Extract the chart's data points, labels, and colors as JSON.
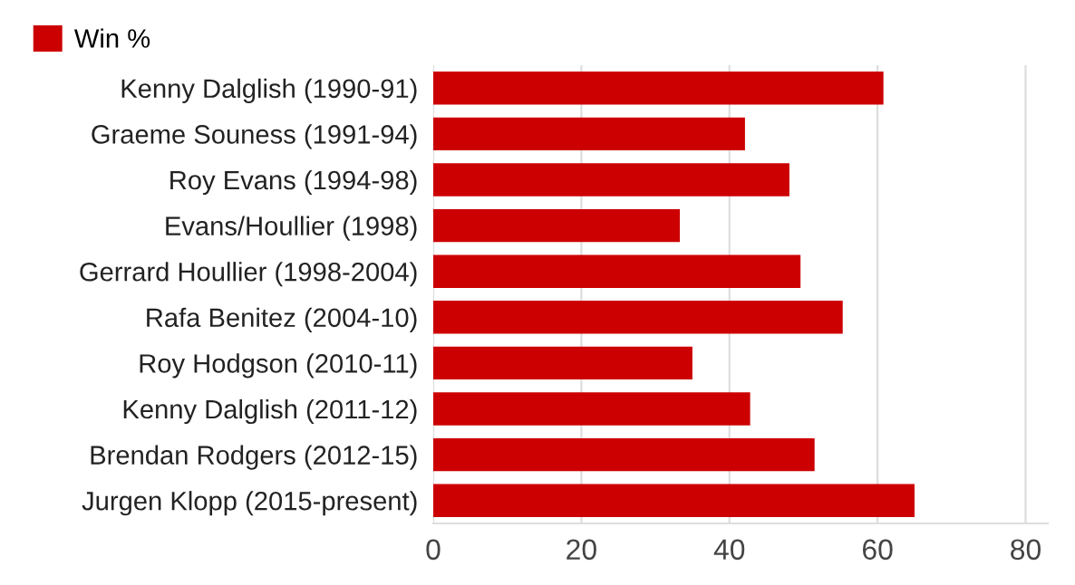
{
  "chart_data": {
    "type": "bar",
    "orientation": "horizontal",
    "categories": [
      "Kenny Dalglish (1990-91)",
      "Graeme Souness (1991-94)",
      "Roy Evans (1994-98)",
      "Evans/Houllier (1998)",
      "Gerrard Houllier (1998-2004)",
      "Rafa Benitez (2004-10)",
      "Roy Hodgson (2010-11)",
      "Kenny Dalglish (2011-12)",
      "Brendan Rodgers (2012-15)",
      "Jurgen Klopp (2015-present)"
    ],
    "series": [
      {
        "name": "Win %",
        "color": "#cc0000",
        "values": [
          60.8,
          42.1,
          48.1,
          33.3,
          49.6,
          55.3,
          35.0,
          42.8,
          51.5,
          65.0
        ]
      }
    ],
    "xlim": [
      0,
      83
    ],
    "xticks": [
      0,
      20,
      40,
      60,
      80
    ],
    "grid": "x",
    "legend": "top left"
  }
}
